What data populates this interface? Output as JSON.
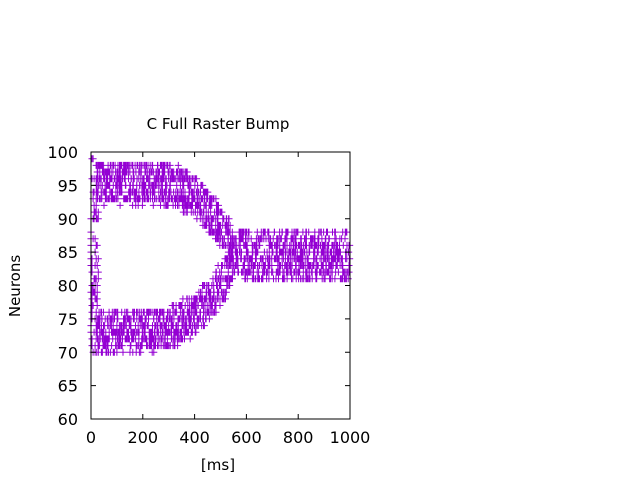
{
  "chart_data": {
    "type": "scatter",
    "title": "C Full Raster Bump",
    "xlabel": "[ms]",
    "ylabel": "Neurons",
    "xlim": [
      0,
      1000
    ],
    "ylim": [
      60,
      100
    ],
    "x_ticks": [
      "0",
      "200",
      "400",
      "600",
      "800",
      "1000"
    ],
    "y_ticks": [
      "60",
      "65",
      "70",
      "75",
      "80",
      "85",
      "90",
      "95",
      "100"
    ],
    "grid": false,
    "legend": "none",
    "marker": "plus",
    "series": [
      {
        "color": "#9400d3",
        "bands": [
          {
            "description_key": "upper-bump",
            "x_range": [
              20,
              550
            ],
            "center": [
              [
                20,
                95.5
              ],
              [
                300,
                95.2
              ],
              [
                400,
                93.5
              ],
              [
                480,
                90
              ],
              [
                530,
                87
              ],
              [
                550,
                85
              ]
            ],
            "half_width": 3
          },
          {
            "description_key": "lower-bump",
            "x_range": [
              20,
              550
            ],
            "center": [
              [
                20,
                73
              ],
              [
                300,
                73.5
              ],
              [
                400,
                75.5
              ],
              [
                480,
                79
              ],
              [
                530,
                82
              ],
              [
                550,
                84
              ]
            ],
            "half_width": 3
          },
          {
            "description_key": "merged-bump",
            "x_range": [
              550,
              1000
            ],
            "center": [
              [
                550,
                84.5
              ],
              [
                1000,
                84.5
              ]
            ],
            "half_width": 3.5
          }
        ],
        "initial_column": {
          "x": [
            0,
            30
          ],
          "y_range": [
            70,
            99
          ]
        }
      }
    ]
  }
}
